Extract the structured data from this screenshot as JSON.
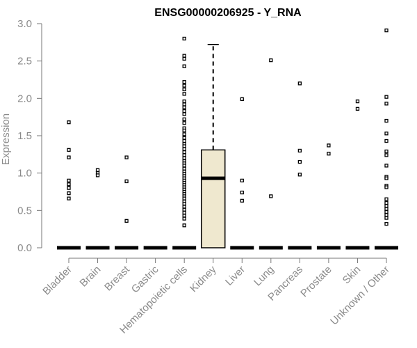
{
  "chart_data": {
    "type": "box",
    "title": "ENSG00000206925 - Y_RNA",
    "xlabel": "",
    "ylabel": "Expression",
    "ylim": [
      0,
      3.0
    ],
    "yticks": [
      "0.0",
      "0.5",
      "1.0",
      "1.5",
      "2.0",
      "2.5",
      "3.0"
    ],
    "categories": [
      "Bladder",
      "Brain",
      "Breast",
      "Gastric",
      "Hematopoietic cells",
      "Kidney",
      "Liver",
      "Lung",
      "Pancreas",
      "Prostate",
      "Skin",
      "Unknown / Other"
    ],
    "box_fill": "#efe8cf",
    "groups": [
      {
        "category": "Bladder",
        "median": 0,
        "q1": 0,
        "q3": 0,
        "whisker_low": 0,
        "whisker_high": 0,
        "outliers": [
          1.68,
          1.31,
          1.21,
          0.9,
          0.85,
          0.8,
          0.73,
          0.66
        ]
      },
      {
        "category": "Brain",
        "median": 0,
        "q1": 0,
        "q3": 0,
        "whisker_low": 0,
        "whisker_high": 0,
        "outliers": [
          1.04,
          1.0,
          0.97
        ]
      },
      {
        "category": "Breast",
        "median": 0,
        "q1": 0,
        "q3": 0,
        "whisker_low": 0,
        "whisker_high": 0,
        "outliers": [
          1.21,
          0.89,
          0.36
        ]
      },
      {
        "category": "Gastric",
        "median": 0,
        "q1": 0,
        "q3": 0,
        "whisker_low": 0,
        "whisker_high": 0,
        "outliers": []
      },
      {
        "category": "Hematopoietic cells",
        "median": 0,
        "q1": 0,
        "q3": 0,
        "whisker_low": 0,
        "whisker_high": 0,
        "outliers": [
          2.8,
          2.57,
          2.53,
          2.43,
          2.22,
          2.17,
          2.12,
          2.06,
          1.96,
          1.92,
          1.88,
          1.83,
          1.79,
          1.72,
          1.67,
          1.6,
          1.57,
          1.52,
          1.47,
          1.43,
          1.39,
          1.36,
          1.32,
          1.28,
          1.24,
          1.2,
          1.16,
          1.13,
          1.1,
          1.06,
          1.02,
          0.99,
          0.96,
          0.93,
          0.9,
          0.87,
          0.84,
          0.81,
          0.78,
          0.75,
          0.72,
          0.69,
          0.66,
          0.62,
          0.59,
          0.55,
          0.51,
          0.47,
          0.43,
          0.39,
          0.3
        ]
      },
      {
        "category": "Kidney",
        "median": 0.93,
        "q1": 0,
        "q3": 1.31,
        "whisker_low": 0,
        "whisker_high": 2.72,
        "outliers": []
      },
      {
        "category": "Liver",
        "median": 0,
        "q1": 0,
        "q3": 0,
        "whisker_low": 0,
        "whisker_high": 0,
        "outliers": [
          1.99,
          0.9,
          0.74,
          0.63
        ]
      },
      {
        "category": "Lung",
        "median": 0,
        "q1": 0,
        "q3": 0,
        "whisker_low": 0,
        "whisker_high": 0,
        "outliers": [
          2.51,
          0.69
        ]
      },
      {
        "category": "Pancreas",
        "median": 0,
        "q1": 0,
        "q3": 0,
        "whisker_low": 0,
        "whisker_high": 0,
        "outliers": [
          2.2,
          1.3,
          1.15,
          0.98
        ]
      },
      {
        "category": "Prostate",
        "median": 0,
        "q1": 0,
        "q3": 0,
        "whisker_low": 0,
        "whisker_high": 0,
        "outliers": [
          1.37,
          1.26
        ]
      },
      {
        "category": "Skin",
        "median": 0,
        "q1": 0,
        "q3": 0,
        "whisker_low": 0,
        "whisker_high": 0,
        "outliers": [
          1.96,
          1.86
        ]
      },
      {
        "category": "Unknown / Other",
        "median": 0,
        "q1": 0,
        "q3": 0,
        "whisker_low": 0,
        "whisker_high": 0,
        "outliers": [
          2.91,
          2.02,
          1.93,
          1.7,
          1.53,
          1.43,
          1.29,
          1.24,
          1.1,
          0.95,
          0.93,
          0.83,
          0.81,
          0.65,
          0.6,
          0.56,
          0.52,
          0.48,
          0.44,
          0.4,
          0.32
        ]
      }
    ]
  }
}
